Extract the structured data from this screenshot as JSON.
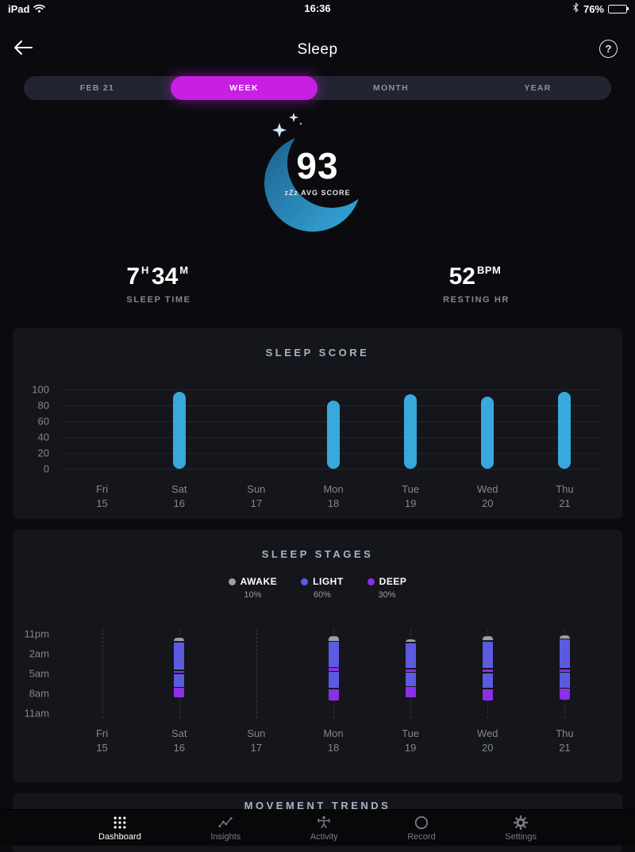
{
  "status_bar": {
    "device": "iPad",
    "time": "16:36",
    "battery_pct": "76%"
  },
  "header": {
    "title": "Sleep",
    "help_label": "?"
  },
  "period_tabs": {
    "options": [
      "FEB 21",
      "WEEK",
      "MONTH",
      "YEAR"
    ],
    "selected": "WEEK"
  },
  "summary": {
    "avg_score": "93",
    "avg_score_label": "zZz AVG SCORE",
    "sleep_time": {
      "hours": "7",
      "hours_unit": "H",
      "minutes": "34",
      "minutes_unit": "M",
      "label": "SLEEP TIME"
    },
    "resting_hr": {
      "value": "52",
      "unit": "BPM",
      "label": "RESTING HR"
    }
  },
  "colors": {
    "accent_magenta": "#c81fe2",
    "score_bar_blue": "#38a9dc",
    "awake_gray": "#9b9ea6",
    "light_indigo": "#5a5be0",
    "deep_purple": "#8b2fe8"
  },
  "chart_data": [
    {
      "type": "bar",
      "title": "SLEEP SCORE",
      "categories": [
        "Fri 15",
        "Sat 16",
        "Sun 17",
        "Mon 18",
        "Tue 19",
        "Wed 20",
        "Thu 21"
      ],
      "values": [
        0,
        97,
        0,
        86,
        94,
        91,
        97
      ],
      "ylim": [
        0,
        100
      ],
      "yticks": [
        100,
        80,
        60,
        40,
        20,
        0
      ],
      "bar_color": "#38a9dc",
      "grid": true,
      "legend_position": "none"
    },
    {
      "type": "stacked-bar",
      "title": "SLEEP STAGES",
      "legend": [
        {
          "label": "AWAKE",
          "pct": "10%",
          "color": "#9b9ea6"
        },
        {
          "label": "LIGHT",
          "pct": "60%",
          "color": "#5a5be0"
        },
        {
          "label": "DEEP",
          "pct": "30%",
          "color": "#8b2fe8"
        }
      ],
      "time_axis": {
        "ticks": [
          "11pm",
          "2am",
          "5am",
          "8am",
          "11am"
        ],
        "hours_per_tick": 3,
        "total_hours": 12,
        "start": "11pm"
      },
      "categories": [
        "Fri 15",
        "Sat 16",
        "Sun 17",
        "Mon 18",
        "Tue 19",
        "Wed 20",
        "Thu 21"
      ],
      "stage_colors": {
        "awake": "#9b9ea6",
        "light": "#5a5be0",
        "deep": "#8b2fe8"
      },
      "bars": [
        {
          "category": "Sat 16",
          "start_hour_offset": 0.6,
          "segments": [
            [
              "awake",
              0.7
            ],
            [
              "light",
              4.3
            ],
            [
              "deep",
              0.5
            ],
            [
              "light",
              2.1
            ],
            [
              "deep",
              1.6
            ]
          ]
        },
        {
          "category": "Mon 18",
          "start_hour_offset": 0.3,
          "segments": [
            [
              "awake",
              0.9
            ],
            [
              "light",
              4.0
            ],
            [
              "deep",
              0.6
            ],
            [
              "light",
              2.6
            ],
            [
              "deep",
              1.9
            ]
          ]
        },
        {
          "category": "Tue 19",
          "start_hour_offset": 0.8,
          "segments": [
            [
              "awake",
              0.6
            ],
            [
              "light",
              4.0
            ],
            [
              "deep",
              0.5
            ],
            [
              "light",
              2.2
            ],
            [
              "deep",
              1.7
            ]
          ]
        },
        {
          "category": "Wed 20",
          "start_hour_offset": 0.4,
          "segments": [
            [
              "awake",
              0.8
            ],
            [
              "light",
              4.2
            ],
            [
              "deep",
              0.6
            ],
            [
              "light",
              2.4
            ],
            [
              "deep",
              1.9
            ]
          ]
        },
        {
          "category": "Thu 21",
          "start_hour_offset": 0.2,
          "segments": [
            [
              "awake",
              0.7
            ],
            [
              "light",
              4.5
            ],
            [
              "deep",
              0.5
            ],
            [
              "light",
              2.4
            ],
            [
              "deep",
              1.8
            ]
          ]
        }
      ]
    }
  ],
  "movement_card": {
    "title": "MOVEMENT TRENDS"
  },
  "tab_bar": {
    "items": [
      {
        "label": "Dashboard",
        "active": true
      },
      {
        "label": "Insights",
        "active": false
      },
      {
        "label": "Activity",
        "active": false
      },
      {
        "label": "Record",
        "active": false
      },
      {
        "label": "Settings",
        "active": false
      }
    ]
  }
}
